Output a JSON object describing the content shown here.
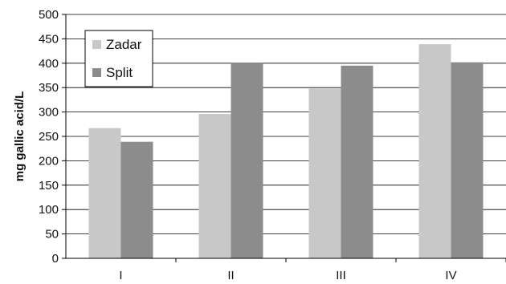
{
  "chart_data": {
    "type": "bar",
    "title": "",
    "xlabel": "",
    "ylabel": "mg gallic acid/L",
    "categories": [
      "I",
      "II",
      "III",
      "IV"
    ],
    "series": [
      {
        "name": "Zadar",
        "values": [
          267,
          296,
          348,
          439
        ],
        "color": "#c8c8c8"
      },
      {
        "name": "Split",
        "values": [
          239,
          400,
          395,
          402
        ],
        "color": "#8c8c8c"
      }
    ],
    "ylim": [
      0,
      500
    ],
    "yticks": [
      0,
      50,
      100,
      150,
      200,
      250,
      300,
      350,
      400,
      450,
      500
    ],
    "grid": true,
    "legend_position": "top-left"
  }
}
